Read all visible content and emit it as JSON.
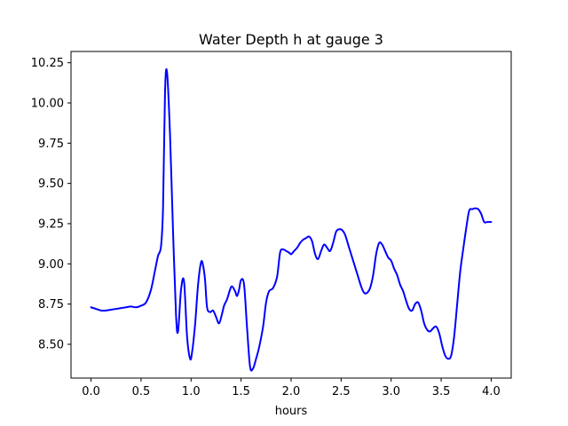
{
  "chart_data": {
    "type": "line",
    "title": "Water Depth h at gauge 3",
    "xlabel": "hours",
    "ylabel": "",
    "xlim": [
      -0.2,
      4.2
    ],
    "ylim": [
      8.29,
      10.32
    ],
    "xticks": [
      0.0,
      0.5,
      1.0,
      1.5,
      2.0,
      2.5,
      3.0,
      3.5,
      4.0
    ],
    "xtick_labels": [
      "0.0",
      "0.5",
      "1.0",
      "1.5",
      "2.0",
      "2.5",
      "3.0",
      "3.5",
      "4.0"
    ],
    "yticks": [
      8.5,
      8.75,
      9.0,
      9.25,
      9.5,
      9.75,
      10.0,
      10.25
    ],
    "ytick_labels": [
      "8.50",
      "8.75",
      "9.00",
      "9.25",
      "9.50",
      "9.75",
      "10.00",
      "10.25"
    ],
    "grid": false,
    "series": [
      {
        "color": "#0000ff",
        "x": [
          0.0,
          0.05,
          0.1,
          0.15,
          0.2,
          0.25,
          0.3,
          0.35,
          0.4,
          0.45,
          0.5,
          0.55,
          0.6,
          0.64,
          0.67,
          0.7,
          0.72,
          0.74,
          0.76,
          0.79,
          0.82,
          0.85,
          0.87,
          0.9,
          0.93,
          0.96,
          0.99,
          1.01,
          1.04,
          1.07,
          1.1,
          1.12,
          1.14,
          1.16,
          1.19,
          1.22,
          1.25,
          1.28,
          1.31,
          1.33,
          1.36,
          1.39,
          1.41,
          1.44,
          1.46,
          1.48,
          1.5,
          1.53,
          1.56,
          1.59,
          1.62,
          1.65,
          1.68,
          1.72,
          1.75,
          1.78,
          1.82,
          1.86,
          1.89,
          1.92,
          1.95,
          1.98,
          2.0,
          2.03,
          2.06,
          2.09,
          2.12,
          2.15,
          2.18,
          2.21,
          2.24,
          2.27,
          2.3,
          2.33,
          2.36,
          2.39,
          2.42,
          2.45,
          2.48,
          2.51,
          2.54,
          2.58,
          2.62,
          2.66,
          2.7,
          2.73,
          2.76,
          2.79,
          2.82,
          2.85,
          2.88,
          2.91,
          2.94,
          2.97,
          3.0,
          3.03,
          3.06,
          3.09,
          3.12,
          3.15,
          3.18,
          3.21,
          3.24,
          3.27,
          3.3,
          3.33,
          3.36,
          3.39,
          3.42,
          3.45,
          3.48,
          3.51,
          3.54,
          3.57,
          3.6,
          3.63,
          3.66,
          3.69,
          3.72,
          3.75,
          3.78,
          3.81,
          3.84,
          3.87,
          3.9,
          3.93,
          3.96,
          4.0
        ],
        "y": [
          8.73,
          8.72,
          8.71,
          8.71,
          8.715,
          8.72,
          8.725,
          8.73,
          8.735,
          8.73,
          8.74,
          8.76,
          8.84,
          8.96,
          9.05,
          9.11,
          9.35,
          10.07,
          10.19,
          9.8,
          9.2,
          8.68,
          8.58,
          8.84,
          8.89,
          8.55,
          8.41,
          8.45,
          8.62,
          8.87,
          9.01,
          8.99,
          8.9,
          8.73,
          8.7,
          8.71,
          8.67,
          8.63,
          8.69,
          8.74,
          8.78,
          8.84,
          8.86,
          8.83,
          8.8,
          8.84,
          8.9,
          8.87,
          8.6,
          8.36,
          8.35,
          8.41,
          8.48,
          8.61,
          8.76,
          8.83,
          8.85,
          8.92,
          9.07,
          9.09,
          9.08,
          9.07,
          9.06,
          9.08,
          9.1,
          9.13,
          9.15,
          9.16,
          9.17,
          9.14,
          9.06,
          9.03,
          9.08,
          9.12,
          9.1,
          9.08,
          9.13,
          9.2,
          9.215,
          9.21,
          9.18,
          9.1,
          9.02,
          8.94,
          8.86,
          8.82,
          8.82,
          8.85,
          8.93,
          9.06,
          9.13,
          9.12,
          9.08,
          9.04,
          9.02,
          8.97,
          8.93,
          8.87,
          8.83,
          8.77,
          8.72,
          8.71,
          8.75,
          8.76,
          8.71,
          8.63,
          8.59,
          8.58,
          8.6,
          8.61,
          8.57,
          8.49,
          8.43,
          8.41,
          8.43,
          8.55,
          8.75,
          8.95,
          9.09,
          9.22,
          9.33,
          9.34,
          9.345,
          9.34,
          9.31,
          9.26,
          9.26,
          9.26
        ]
      }
    ]
  }
}
